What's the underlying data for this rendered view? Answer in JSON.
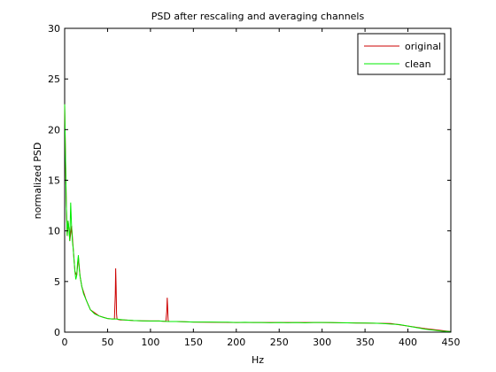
{
  "chart_data": {
    "type": "line",
    "title": "PSD after rescaling and averaging channels",
    "xlabel": "Hz",
    "ylabel": "normalized PSD",
    "xlim": [
      0,
      450
    ],
    "ylim": [
      0,
      30
    ],
    "xticks": [
      0,
      50,
      100,
      150,
      200,
      250,
      300,
      350,
      400,
      450
    ],
    "yticks": [
      0,
      5,
      10,
      15,
      20,
      25,
      30
    ],
    "xtick_labels": [
      "0",
      "50",
      "100",
      "150",
      "200",
      "250",
      "300",
      "350",
      "400",
      "450"
    ],
    "ytick_labels": [
      "0",
      "5",
      "10",
      "15",
      "20",
      "25",
      "30"
    ],
    "grid": false,
    "legend_position": "top-right",
    "series": [
      {
        "name": "original",
        "color": "#cc0000",
        "x": [
          0,
          1,
          2,
          3,
          4,
          5,
          6,
          8,
          10,
          12,
          14,
          16,
          18,
          20,
          25,
          30,
          40,
          50,
          55,
          58,
          59,
          59.5,
          60,
          60.5,
          61,
          62,
          65,
          70,
          80,
          90,
          100,
          110,
          115,
          118,
          119,
          119.5,
          120,
          120.5,
          121,
          122,
          125,
          130,
          150,
          200,
          250,
          300,
          350,
          380,
          400,
          420,
          440,
          450
        ],
        "y": [
          22.5,
          17.0,
          12.5,
          9.5,
          11.0,
          10.2,
          9.0,
          10.5,
          8.2,
          6.0,
          5.6,
          7.4,
          5.5,
          4.5,
          3.2,
          2.2,
          1.6,
          1.35,
          1.3,
          1.3,
          3.8,
          6.3,
          4.5,
          1.8,
          1.3,
          1.25,
          1.2,
          1.2,
          1.15,
          1.12,
          1.1,
          1.1,
          1.08,
          1.08,
          2.1,
          3.4,
          2.4,
          1.2,
          1.08,
          1.05,
          1.05,
          1.05,
          1.0,
          0.95,
          0.95,
          0.95,
          0.9,
          0.85,
          0.6,
          0.35,
          0.15,
          0.05
        ]
      },
      {
        "name": "clean",
        "color": "#00ee00",
        "x": [
          0,
          1,
          2,
          3,
          4,
          5,
          6,
          7,
          8,
          9,
          10,
          11,
          12,
          13,
          14,
          15,
          16,
          17,
          18,
          19,
          20,
          22,
          25,
          28,
          30,
          35,
          40,
          45,
          50,
          55,
          60,
          65,
          70,
          80,
          90,
          100,
          110,
          120,
          130,
          140,
          150,
          160,
          170,
          180,
          190,
          200,
          210,
          220,
          230,
          240,
          250,
          260,
          270,
          280,
          290,
          300,
          310,
          320,
          330,
          340,
          350,
          360,
          370,
          380,
          390,
          400,
          410,
          420,
          430,
          440,
          450
        ],
        "y": [
          22.5,
          17.0,
          12.5,
          9.5,
          11.0,
          10.2,
          9.0,
          12.8,
          10.5,
          9.0,
          8.2,
          7.0,
          6.0,
          5.2,
          5.6,
          6.8,
          7.6,
          6.2,
          5.5,
          5.0,
          4.5,
          3.8,
          3.2,
          2.6,
          2.2,
          1.8,
          1.6,
          1.45,
          1.35,
          1.3,
          1.3,
          1.25,
          1.2,
          1.15,
          1.12,
          1.1,
          1.1,
          1.05,
          1.05,
          1.02,
          1.0,
          1.0,
          1.0,
          0.98,
          0.98,
          0.95,
          0.97,
          0.95,
          0.95,
          0.93,
          0.95,
          0.93,
          0.95,
          0.92,
          0.95,
          0.95,
          0.95,
          0.93,
          0.92,
          0.9,
          0.9,
          0.88,
          0.85,
          0.8,
          0.75,
          0.6,
          0.45,
          0.3,
          0.2,
          0.1,
          0.05
        ]
      }
    ]
  }
}
